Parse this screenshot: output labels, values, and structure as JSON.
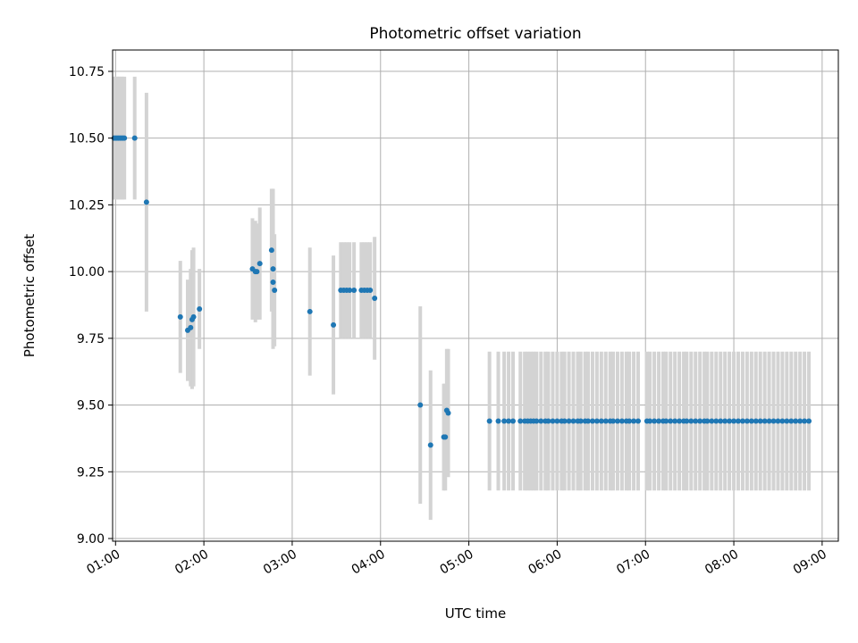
{
  "chart_data": {
    "type": "scatter",
    "title": "Photometric offset variation",
    "xlabel": "UTC time",
    "ylabel": "Photometric offset",
    "x_tick_labels": [
      "01:00",
      "02:00",
      "03:00",
      "04:00",
      "05:00",
      "06:00",
      "07:00",
      "08:00",
      "09:00"
    ],
    "y_tick_labels": [
      "9.00",
      "9.25",
      "9.50",
      "9.75",
      "10.00",
      "10.25",
      "10.50",
      "10.75"
    ],
    "xlim": [
      "00:58",
      "09:11"
    ],
    "ylim": [
      8.99,
      10.83
    ],
    "grid": true,
    "marker_color": "#1f77b4",
    "errorbar_color": "#d3d3d3",
    "points": [
      {
        "x": "00:59",
        "y": 10.5,
        "err": 0.23
      },
      {
        "x": "01:00",
        "y": 10.5,
        "err": 0.23
      },
      {
        "x": "01:01",
        "y": 10.5,
        "err": 0.23
      },
      {
        "x": "01:02",
        "y": 10.5,
        "err": 0.23
      },
      {
        "x": "01:03",
        "y": 10.5,
        "err": 0.23
      },
      {
        "x": "01:04",
        "y": 10.5,
        "err": 0.23
      },
      {
        "x": "01:05",
        "y": 10.5,
        "err": 0.23
      },
      {
        "x": "01:06",
        "y": 10.5,
        "err": 0.23
      },
      {
        "x": "01:13",
        "y": 10.5,
        "err": 0.23
      },
      {
        "x": "01:21",
        "y": 10.26,
        "err": 0.41
      },
      {
        "x": "01:44",
        "y": 9.83,
        "err": 0.21
      },
      {
        "x": "01:49",
        "y": 9.78,
        "err": 0.19
      },
      {
        "x": "01:51",
        "y": 9.79,
        "err": 0.22
      },
      {
        "x": "01:52",
        "y": 9.82,
        "err": 0.26
      },
      {
        "x": "01:53",
        "y": 9.83,
        "err": 0.26
      },
      {
        "x": "01:57",
        "y": 9.86,
        "err": 0.15
      },
      {
        "x": "02:33",
        "y": 10.01,
        "err": 0.19
      },
      {
        "x": "02:35",
        "y": 10.0,
        "err": 0.19
      },
      {
        "x": "02:36",
        "y": 10.0,
        "err": 0.18
      },
      {
        "x": "02:38",
        "y": 10.03,
        "err": 0.21
      },
      {
        "x": "02:46",
        "y": 10.08,
        "err": 0.23
      },
      {
        "x": "02:47",
        "y": 10.01,
        "err": 0.3
      },
      {
        "x": "02:47",
        "y": 9.96,
        "err": 0.24
      },
      {
        "x": "02:48",
        "y": 9.93,
        "err": 0.21
      },
      {
        "x": "03:12",
        "y": 9.85,
        "err": 0.24
      },
      {
        "x": "03:28",
        "y": 9.8,
        "err": 0.26
      },
      {
        "x": "03:33",
        "y": 9.93,
        "err": 0.18
      },
      {
        "x": "03:35",
        "y": 9.93,
        "err": 0.18
      },
      {
        "x": "03:37",
        "y": 9.93,
        "err": 0.18
      },
      {
        "x": "03:39",
        "y": 9.93,
        "err": 0.18
      },
      {
        "x": "03:42",
        "y": 9.93,
        "err": 0.18
      },
      {
        "x": "03:47",
        "y": 9.93,
        "err": 0.18
      },
      {
        "x": "03:49",
        "y": 9.93,
        "err": 0.18
      },
      {
        "x": "03:51",
        "y": 9.93,
        "err": 0.18
      },
      {
        "x": "03:53",
        "y": 9.93,
        "err": 0.18
      },
      {
        "x": "03:56",
        "y": 9.9,
        "err": 0.23
      },
      {
        "x": "04:27",
        "y": 9.5,
        "err": 0.37
      },
      {
        "x": "04:34",
        "y": 9.35,
        "err": 0.28
      },
      {
        "x": "04:43",
        "y": 9.38,
        "err": 0.2
      },
      {
        "x": "04:44",
        "y": 9.38,
        "err": 0.2
      },
      {
        "x": "04:45",
        "y": 9.48,
        "err": 0.23
      },
      {
        "x": "04:46",
        "y": 9.47,
        "err": 0.24
      },
      {
        "x": "05:14",
        "y": 9.44,
        "err": 0.26
      },
      {
        "x": "05:20",
        "y": 9.44,
        "err": 0.26
      },
      {
        "x": "05:24",
        "y": 9.44,
        "err": 0.26
      },
      {
        "x": "05:27",
        "y": 9.44,
        "err": 0.26
      },
      {
        "x": "05:30",
        "y": 9.44,
        "err": 0.26
      },
      {
        "x": "05:35",
        "y": 9.44,
        "err": 0.26
      },
      {
        "x": "05:38",
        "y": 9.44,
        "err": 0.26
      },
      {
        "x": "05:40",
        "y": 9.44,
        "err": 0.26
      },
      {
        "x": "05:42",
        "y": 9.44,
        "err": 0.26
      },
      {
        "x": "05:44",
        "y": 9.44,
        "err": 0.26
      },
      {
        "x": "05:46",
        "y": 9.44,
        "err": 0.26
      },
      {
        "x": "05:49",
        "y": 9.44,
        "err": 0.26
      },
      {
        "x": "05:52",
        "y": 9.44,
        "err": 0.26
      },
      {
        "x": "05:54",
        "y": 9.44,
        "err": 0.26
      },
      {
        "x": "05:57",
        "y": 9.44,
        "err": 0.26
      },
      {
        "x": "06:00",
        "y": 9.44,
        "err": 0.26
      },
      {
        "x": "06:03",
        "y": 9.44,
        "err": 0.26
      },
      {
        "x": "06:05",
        "y": 9.44,
        "err": 0.26
      },
      {
        "x": "06:08",
        "y": 9.44,
        "err": 0.26
      },
      {
        "x": "06:11",
        "y": 9.44,
        "err": 0.26
      },
      {
        "x": "06:14",
        "y": 9.44,
        "err": 0.26
      },
      {
        "x": "06:16",
        "y": 9.44,
        "err": 0.26
      },
      {
        "x": "06:19",
        "y": 9.44,
        "err": 0.26
      },
      {
        "x": "06:21",
        "y": 9.44,
        "err": 0.26
      },
      {
        "x": "06:24",
        "y": 9.44,
        "err": 0.26
      },
      {
        "x": "06:27",
        "y": 9.44,
        "err": 0.26
      },
      {
        "x": "06:30",
        "y": 9.44,
        "err": 0.26
      },
      {
        "x": "06:33",
        "y": 9.44,
        "err": 0.26
      },
      {
        "x": "06:36",
        "y": 9.44,
        "err": 0.26
      },
      {
        "x": "06:38",
        "y": 9.44,
        "err": 0.26
      },
      {
        "x": "06:41",
        "y": 9.44,
        "err": 0.26
      },
      {
        "x": "06:44",
        "y": 9.44,
        "err": 0.26
      },
      {
        "x": "06:47",
        "y": 9.44,
        "err": 0.26
      },
      {
        "x": "06:49",
        "y": 9.44,
        "err": 0.26
      },
      {
        "x": "06:52",
        "y": 9.44,
        "err": 0.26
      },
      {
        "x": "06:55",
        "y": 9.44,
        "err": 0.26
      },
      {
        "x": "07:01",
        "y": 9.44,
        "err": 0.26
      },
      {
        "x": "07:03",
        "y": 9.44,
        "err": 0.26
      },
      {
        "x": "07:06",
        "y": 9.44,
        "err": 0.26
      },
      {
        "x": "07:09",
        "y": 9.44,
        "err": 0.26
      },
      {
        "x": "07:12",
        "y": 9.44,
        "err": 0.26
      },
      {
        "x": "07:14",
        "y": 9.44,
        "err": 0.26
      },
      {
        "x": "07:17",
        "y": 9.44,
        "err": 0.26
      },
      {
        "x": "07:20",
        "y": 9.44,
        "err": 0.26
      },
      {
        "x": "07:23",
        "y": 9.44,
        "err": 0.26
      },
      {
        "x": "07:26",
        "y": 9.44,
        "err": 0.26
      },
      {
        "x": "07:28",
        "y": 9.44,
        "err": 0.26
      },
      {
        "x": "07:31",
        "y": 9.44,
        "err": 0.26
      },
      {
        "x": "07:34",
        "y": 9.44,
        "err": 0.26
      },
      {
        "x": "07:37",
        "y": 9.44,
        "err": 0.26
      },
      {
        "x": "07:40",
        "y": 9.44,
        "err": 0.26
      },
      {
        "x": "07:42",
        "y": 9.44,
        "err": 0.26
      },
      {
        "x": "07:45",
        "y": 9.44,
        "err": 0.26
      },
      {
        "x": "07:48",
        "y": 9.44,
        "err": 0.26
      },
      {
        "x": "07:51",
        "y": 9.44,
        "err": 0.26
      },
      {
        "x": "07:54",
        "y": 9.44,
        "err": 0.26
      },
      {
        "x": "07:57",
        "y": 9.44,
        "err": 0.26
      },
      {
        "x": "08:00",
        "y": 9.44,
        "err": 0.26
      },
      {
        "x": "08:03",
        "y": 9.44,
        "err": 0.26
      },
      {
        "x": "08:06",
        "y": 9.44,
        "err": 0.26
      },
      {
        "x": "08:09",
        "y": 9.44,
        "err": 0.26
      },
      {
        "x": "08:12",
        "y": 9.44,
        "err": 0.26
      },
      {
        "x": "08:15",
        "y": 9.44,
        "err": 0.26
      },
      {
        "x": "08:18",
        "y": 9.44,
        "err": 0.26
      },
      {
        "x": "08:21",
        "y": 9.44,
        "err": 0.26
      },
      {
        "x": "08:24",
        "y": 9.44,
        "err": 0.26
      },
      {
        "x": "08:27",
        "y": 9.44,
        "err": 0.26
      },
      {
        "x": "08:30",
        "y": 9.44,
        "err": 0.26
      },
      {
        "x": "08:33",
        "y": 9.44,
        "err": 0.26
      },
      {
        "x": "08:36",
        "y": 9.44,
        "err": 0.26
      },
      {
        "x": "08:39",
        "y": 9.44,
        "err": 0.26
      },
      {
        "x": "08:42",
        "y": 9.44,
        "err": 0.26
      },
      {
        "x": "08:45",
        "y": 9.44,
        "err": 0.26
      },
      {
        "x": "08:48",
        "y": 9.44,
        "err": 0.26
      },
      {
        "x": "08:51",
        "y": 9.44,
        "err": 0.26
      }
    ]
  }
}
